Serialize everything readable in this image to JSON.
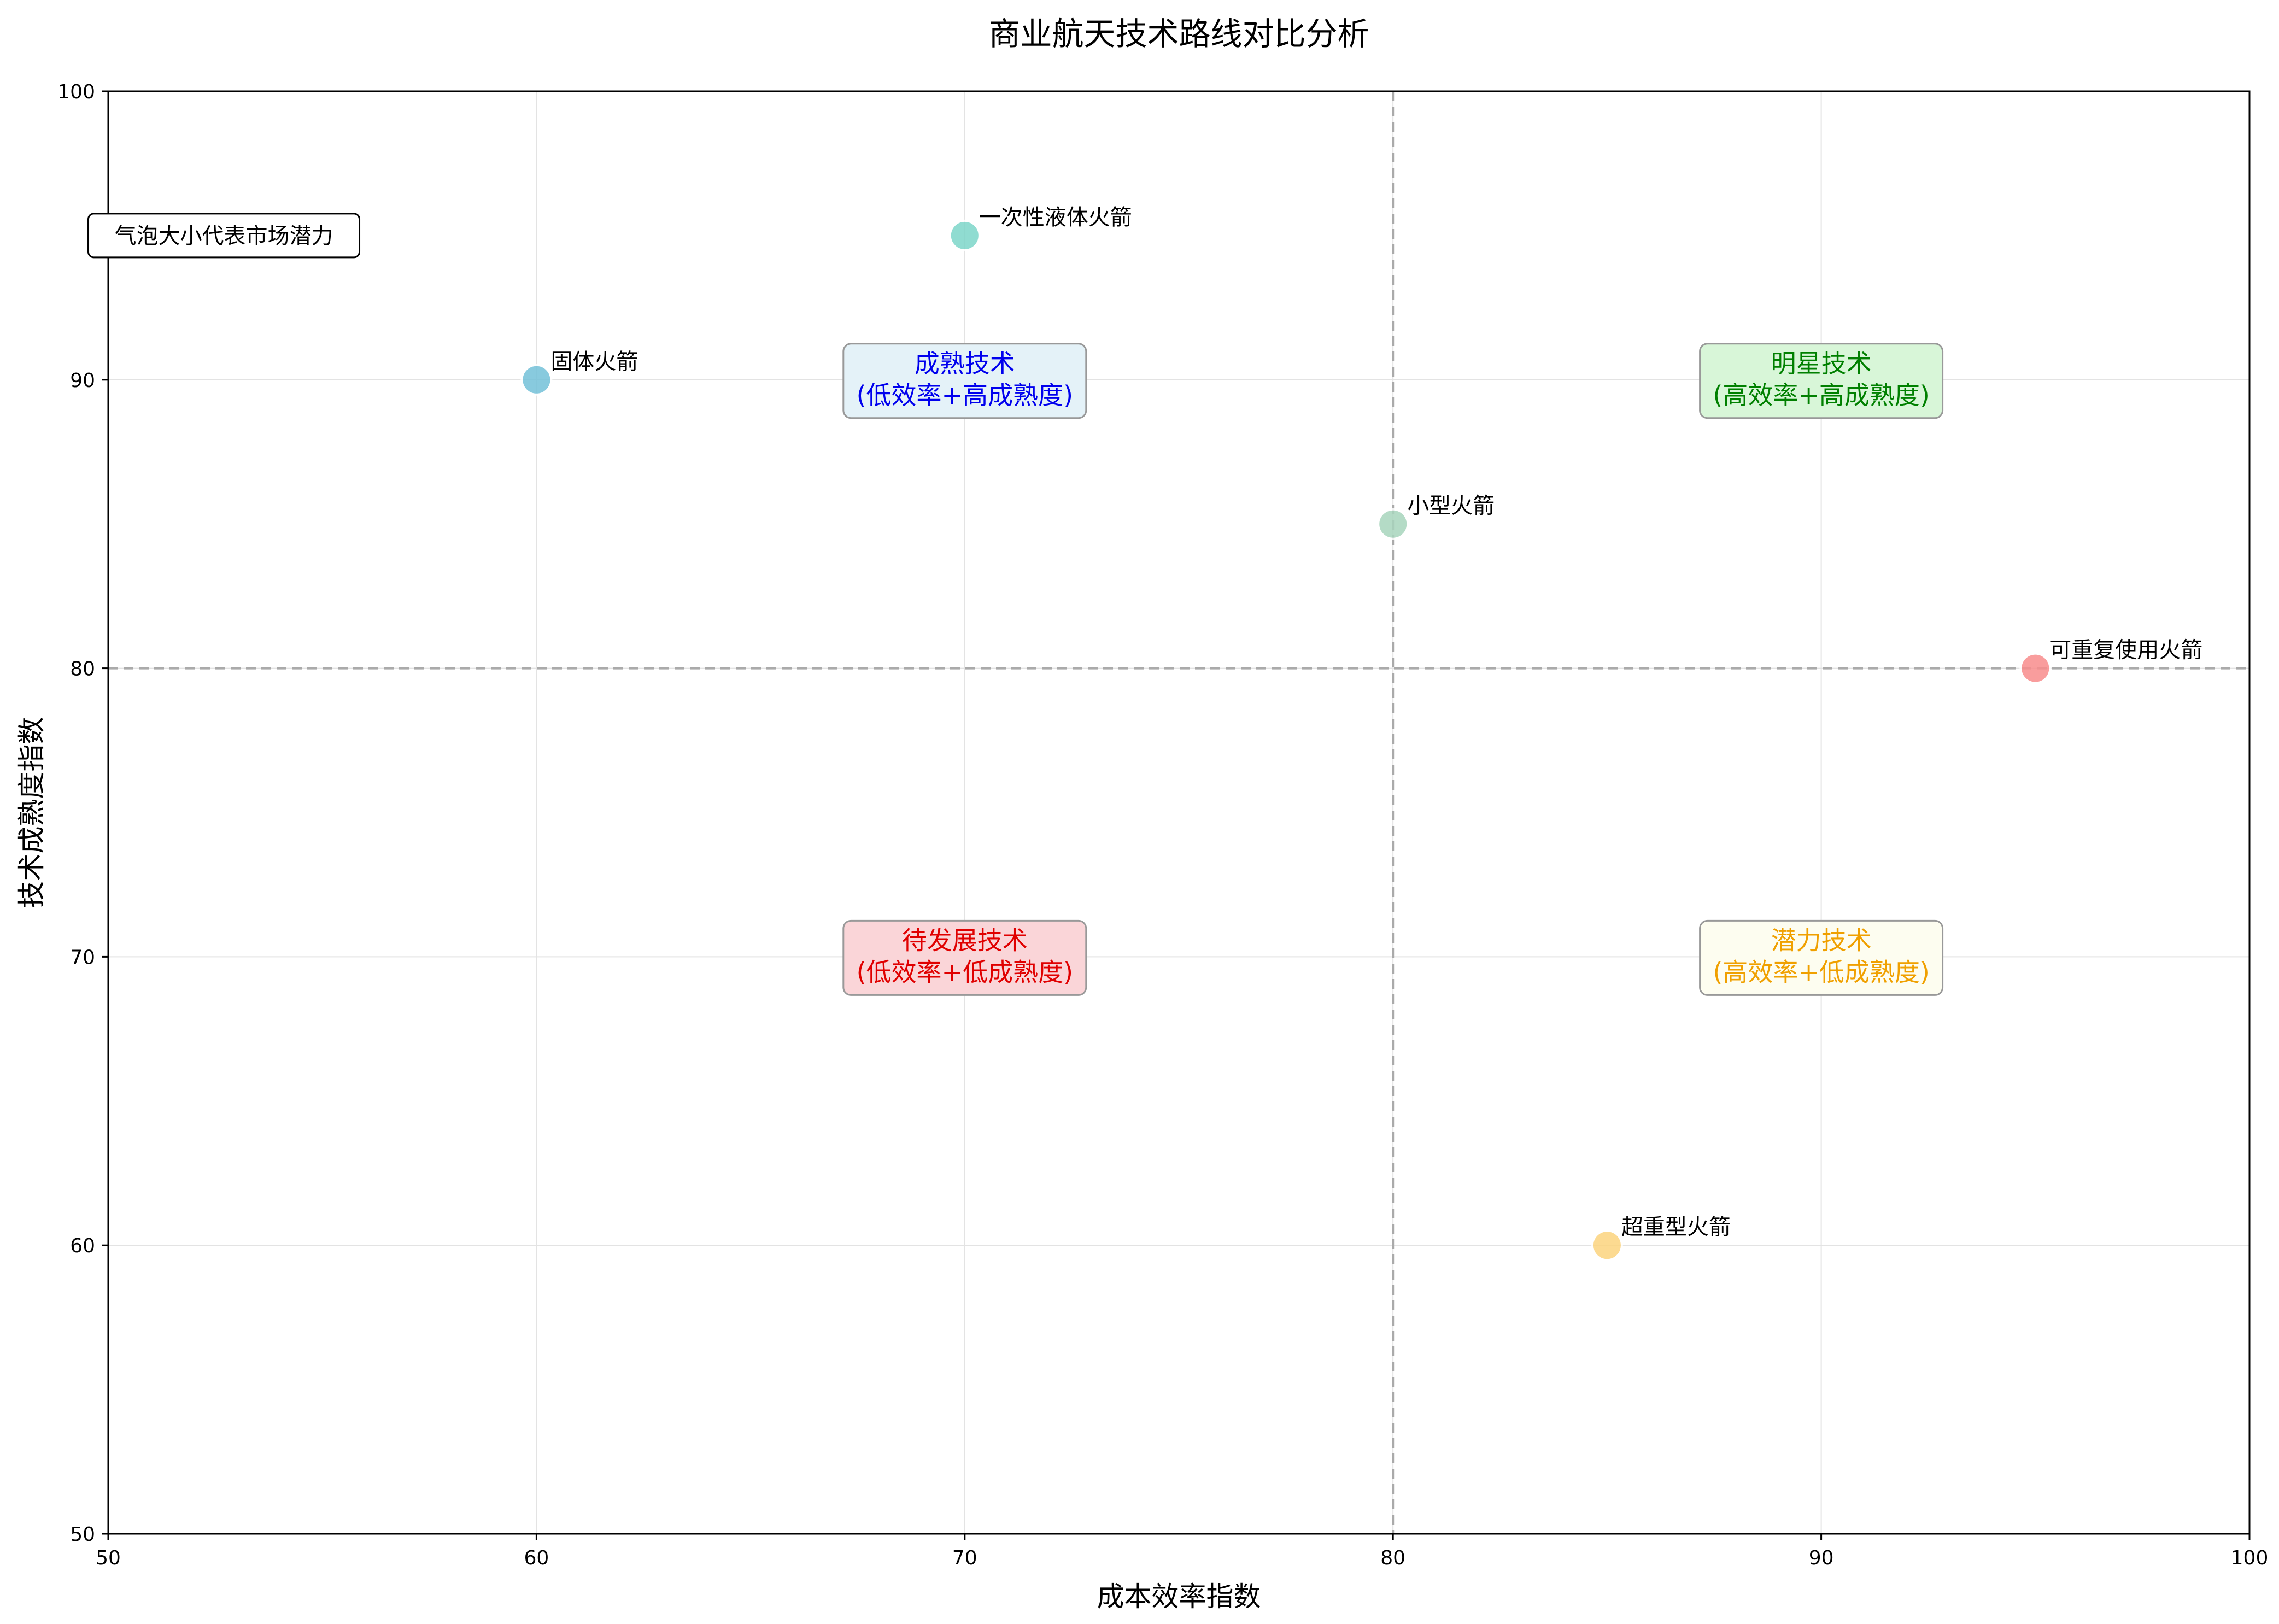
{
  "chart_data": {
    "type": "scatter",
    "title": "商业航天技术路线对比分析",
    "xlabel": "成本效率指数",
    "ylabel": "技术成熟度指数",
    "xlim": [
      50,
      100
    ],
    "ylim": [
      50,
      100
    ],
    "xticks": [
      50,
      60,
      70,
      80,
      90,
      100
    ],
    "yticks": [
      50,
      60,
      70,
      80,
      90,
      100
    ],
    "grid": true,
    "reference_lines": {
      "x": 80,
      "y": 80
    },
    "points": [
      {
        "label": "固体火箭",
        "x": 60,
        "y": 90,
        "color": "#74c1d9"
      },
      {
        "label": "一次性液体火箭",
        "x": 70,
        "y": 95,
        "color": "#7dd6c9"
      },
      {
        "label": "小型火箭",
        "x": 80,
        "y": 85,
        "color": "#a8d5bd"
      },
      {
        "label": "可重复使用火箭",
        "x": 95,
        "y": 80,
        "color": "#f98d8d"
      },
      {
        "label": "超重型火箭",
        "x": 85,
        "y": 60,
        "color": "#fcd47e"
      }
    ],
    "quadrants": [
      {
        "line1": "成熟技术",
        "line2": "(低效率+高成熟度)",
        "x": 70,
        "y": 90,
        "text_color": "#0000ee",
        "bg": "#e4f2f8"
      },
      {
        "line1": "明星技术",
        "line2": "(高效率+高成熟度)",
        "x": 90,
        "y": 90,
        "text_color": "#008000",
        "bg": "#d8f6d8"
      },
      {
        "line1": "待发展技术",
        "line2": "(低效率+低成熟度)",
        "x": 70,
        "y": 70,
        "text_color": "#e00000",
        "bg": "#fad5d8"
      },
      {
        "line1": "潜力技术",
        "line2": "(高效率+低成熟度)",
        "x": 90,
        "y": 70,
        "text_color": "#f0a000",
        "bg": "#fdfdf0"
      }
    ],
    "note": "气泡大小代表市场潜力"
  }
}
